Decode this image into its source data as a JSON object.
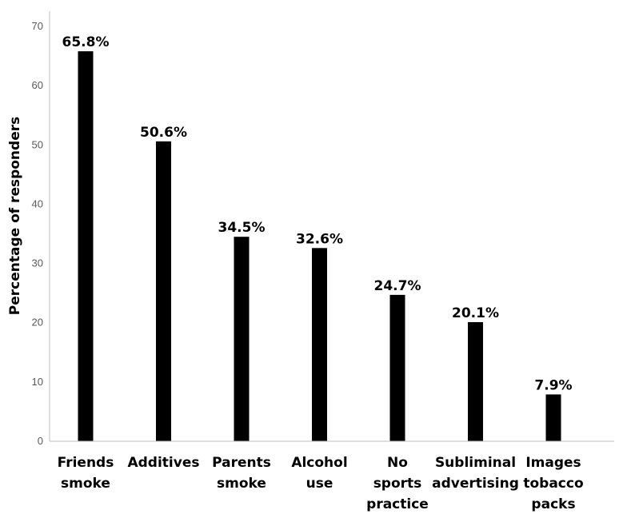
{
  "chart_data": {
    "type": "bar",
    "categories": [
      [
        "Friends",
        "smoke"
      ],
      [
        "Additives"
      ],
      [
        "Parents",
        "smoke"
      ],
      [
        "Alcohol",
        "use"
      ],
      [
        "No",
        "sports",
        "practice"
      ],
      [
        "Subliminal",
        "advertising"
      ],
      [
        "Images",
        "tobacco",
        "packs"
      ]
    ],
    "values": [
      65.8,
      50.6,
      34.5,
      32.6,
      24.7,
      20.1,
      7.9
    ],
    "data_labels": [
      "65.8%",
      "50.6%",
      "34.5%",
      "32.6%",
      "24.7%",
      "20.1%",
      "7.9%"
    ],
    "title": "",
    "xlabel": "",
    "ylabel": "Percentage of responders",
    "ylim": [
      0,
      70
    ],
    "yticks": [
      0,
      10,
      20,
      30,
      40,
      50,
      60,
      70
    ],
    "grid": false,
    "legend": "none",
    "colors": {
      "bar": "#000000",
      "axis": "#bfbfbf",
      "tick_text": "#595959",
      "label_text": "#000000"
    }
  }
}
